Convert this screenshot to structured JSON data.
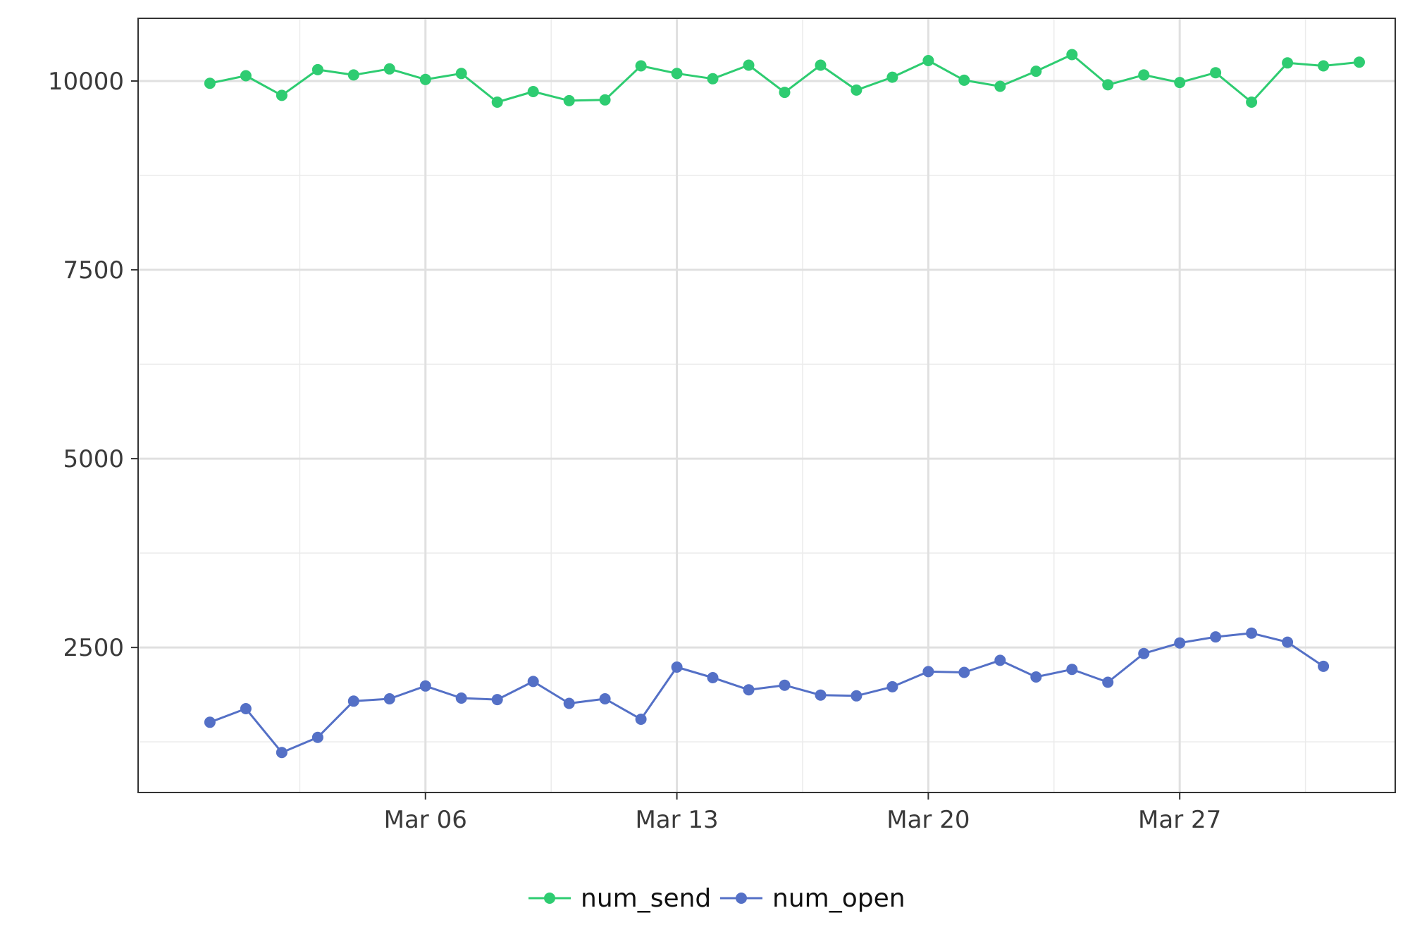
{
  "chart_data": {
    "type": "line",
    "title": "",
    "xlabel": "",
    "ylabel": "",
    "x": [
      "2023-02-28",
      "2023-03-01",
      "2023-03-02",
      "2023-03-03",
      "2023-03-04",
      "2023-03-05",
      "2023-03-06",
      "2023-03-07",
      "2023-03-08",
      "2023-03-09",
      "2023-03-10",
      "2023-03-11",
      "2023-03-12",
      "2023-03-13",
      "2023-03-14",
      "2023-03-15",
      "2023-03-16",
      "2023-03-17",
      "2023-03-18",
      "2023-03-19",
      "2023-03-20",
      "2023-03-21",
      "2023-03-22",
      "2023-03-23",
      "2023-03-24",
      "2023-03-25",
      "2023-03-26",
      "2023-03-27",
      "2023-03-28",
      "2023-03-29",
      "2023-03-30",
      "2023-03-31",
      "2023-04-01"
    ],
    "xticks": [
      "2023-03-06",
      "2023-03-13",
      "2023-03-20",
      "2023-03-27"
    ],
    "xtick_labels": [
      "Mar 06",
      "Mar 13",
      "Mar 20",
      "Mar 27"
    ],
    "xlim": [
      "2023-02-26",
      "2023-04-02"
    ],
    "ylim": [
      580,
      10830
    ],
    "yticks": [
      2500,
      5000,
      7500,
      10000
    ],
    "ytick_labels": [
      "2500",
      "5000",
      "7500",
      "10000"
    ],
    "grid": true,
    "legend_position": "bottom",
    "series": [
      {
        "name": "num_send",
        "color": "#2ecc71",
        "values": [
          9970,
          10070,
          9810,
          10150,
          10080,
          10160,
          10020,
          10100,
          9720,
          9860,
          9740,
          9750,
          10200,
          10100,
          10030,
          10210,
          9850,
          10210,
          9880,
          10050,
          10270,
          10010,
          9930,
          10130,
          10350,
          9950,
          10080,
          9980,
          10110,
          9720,
          10240,
          10200,
          10250
        ]
      },
      {
        "name": "num_open",
        "color": "#5470c6",
        "values": [
          1510,
          1690,
          1110,
          1310,
          1790,
          1820,
          1990,
          1830,
          1810,
          2050,
          1760,
          1820,
          1550,
          2240,
          2100,
          1940,
          2000,
          1870,
          1860,
          1980,
          2180,
          2170,
          2330,
          2110,
          2210,
          2040,
          2420,
          2560,
          2640,
          2690,
          2570,
          2250,
          null
        ]
      }
    ]
  }
}
